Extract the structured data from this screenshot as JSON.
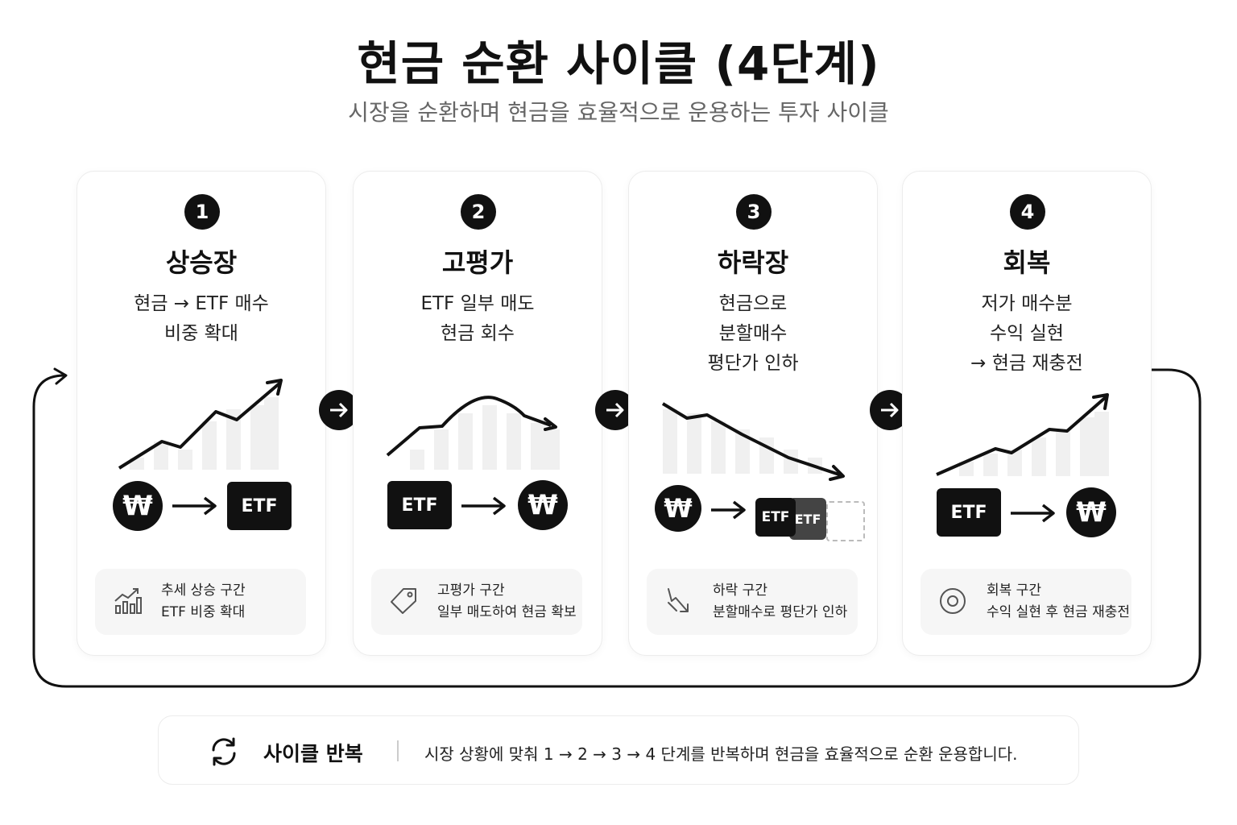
{
  "header": {
    "title": "현금 순환 사이클 (4단계)",
    "subtitle": "시장을 순환하며 현금을 효율적으로 운용하는 투자 사이클"
  },
  "icons": {
    "step_arrow": "arrow-right-icon",
    "loop": "loop-arrow-icon",
    "cycle": "refresh-icon"
  },
  "cards": [
    {
      "number": "1",
      "title": "상승장",
      "desc": [
        "현금 → ETF 매수",
        "비중 확대"
      ],
      "flow": {
        "from": "₩",
        "to": "ETF"
      },
      "info_icon": "trend-up-chart-icon",
      "info": [
        "추세 상승 구간",
        "ETF 비중 확대"
      ]
    },
    {
      "number": "2",
      "title": "고평가",
      "desc": [
        "ETF 일부 매도",
        "현금 회수"
      ],
      "flow": {
        "from": "ETF",
        "to": "₩"
      },
      "info_icon": "tag-icon",
      "info": [
        "고평가 구간",
        "일부 매도하여 현금 확보"
      ]
    },
    {
      "number": "3",
      "title": "하락장",
      "desc": [
        "현금으로",
        "분할매수",
        "평단가 인하"
      ],
      "flow": {
        "from": "₩",
        "to": "ETF"
      },
      "info_icon": "trend-down-icon",
      "info": [
        "하락 구간",
        "분할매수로 평단가 인하"
      ]
    },
    {
      "number": "4",
      "title": "회복",
      "desc": [
        "저가 매수분",
        "수익 실현",
        "→ 현금 재충전"
      ],
      "flow": {
        "from": "ETF",
        "to": "₩"
      },
      "info_icon": "target-icon",
      "info": [
        "회복 구간",
        "수익 실현 후 현금 재충전"
      ]
    }
  ],
  "footer": {
    "title": "사이클 반복",
    "text": "시장 상황에 맞춰 1 → 2 → 3 → 4 단계를 반복하며 현금을 효율적으로 순환 운용합니다."
  }
}
